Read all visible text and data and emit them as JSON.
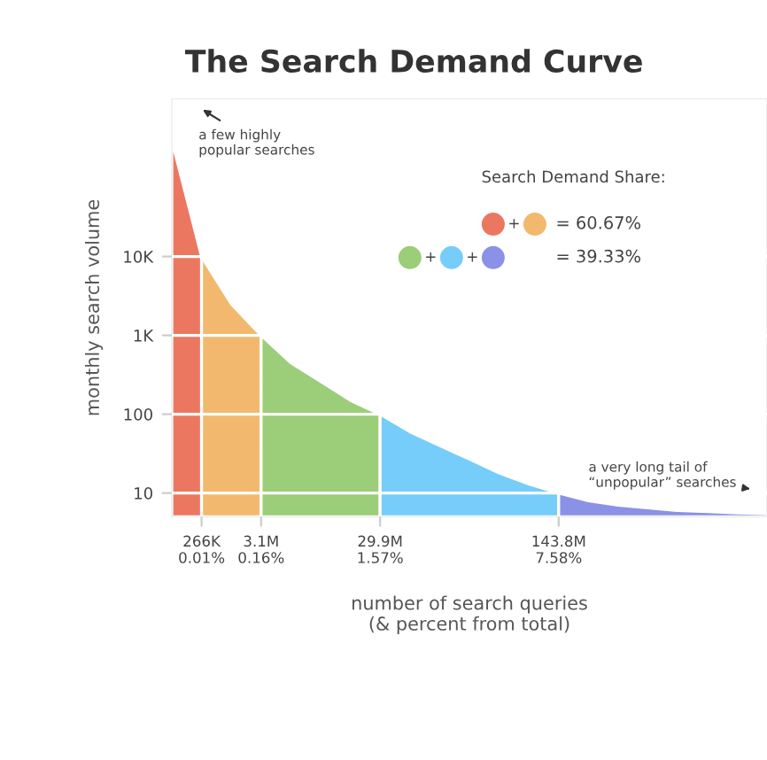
{
  "chart_data": {
    "type": "area",
    "title": "The Search Demand Curve",
    "xlabel": "number of search queries\n(& percent from total)",
    "ylabel": "monthly search volume",
    "log": "y",
    "ylim": [
      5,
      1000000
    ],
    "categories": [
      null,
      "266K\n0.01%",
      null,
      "3.1M\n0.16%",
      null,
      null,
      null,
      "29.9M\n1.57%",
      null,
      null,
      null,
      null,
      null,
      "143.8M\n7.58%",
      null,
      null,
      null,
      null,
      null,
      null,
      null
    ],
    "yticks": [
      10,
      100,
      {
        "value": 1000,
        "label": "1K"
      },
      {
        "value": 10000,
        "label": "10K"
      }
    ],
    "grid": "y",
    "legend": false,
    "series": [
      {
        "color": "#ec7760",
        "values": [
          300000,
          10000,
          null,
          null,
          null,
          null,
          null,
          null,
          null,
          null,
          null,
          null,
          null,
          null,
          null,
          null,
          null,
          null,
          null,
          null,
          null
        ]
      },
      {
        "color": "#f2b96e",
        "values": [
          null,
          10000,
          2500,
          1000,
          null,
          null,
          null,
          null,
          null,
          null,
          null,
          null,
          null,
          null,
          null,
          null,
          null,
          null,
          null,
          null,
          null
        ]
      },
      {
        "color": "#9ccd78",
        "values": [
          null,
          null,
          null,
          1000,
          450,
          260,
          150,
          100,
          null,
          null,
          null,
          null,
          null,
          null,
          null,
          null,
          null,
          null,
          null,
          null,
          null
        ]
      },
      {
        "color": "#76cdf9",
        "values": [
          null,
          null,
          null,
          null,
          null,
          null,
          null,
          100,
          60,
          40,
          27,
          18,
          13,
          10,
          null,
          null,
          null,
          null,
          null,
          null,
          null
        ]
      },
      {
        "color": "#8a91e6",
        "values": [
          null,
          null,
          null,
          null,
          null,
          null,
          null,
          null,
          null,
          null,
          null,
          null,
          null,
          10,
          8,
          7,
          6.5,
          6,
          5.8,
          5.6,
          5.5
        ]
      }
    ],
    "annotations": [
      "a few highly\npopular searches",
      "a very long tail of\n“unpopular” searches",
      "Search Demand Share:",
      "+",
      "= 60.67%",
      "+",
      "+",
      "= 39.33%"
    ]
  }
}
